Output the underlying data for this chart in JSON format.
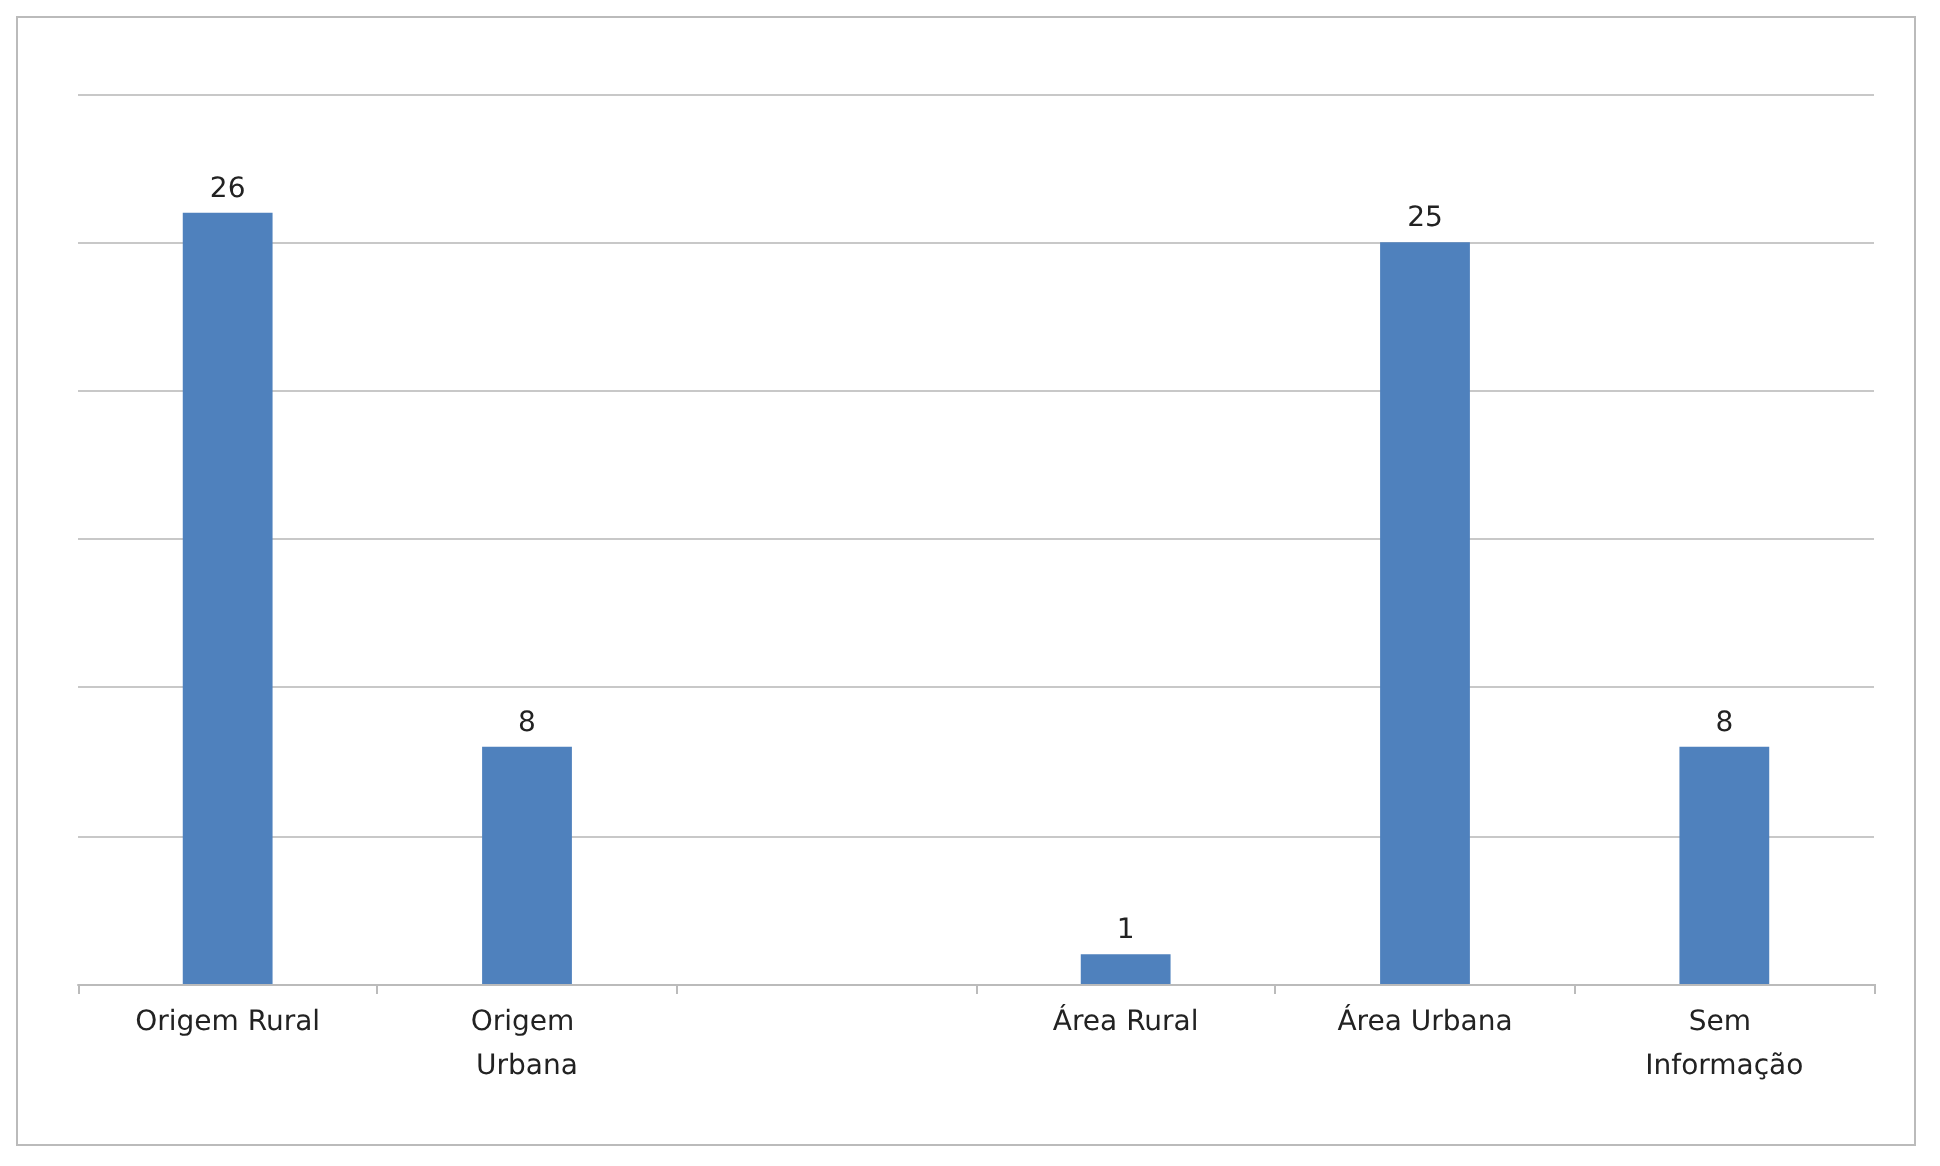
{
  "chart_data": {
    "type": "bar",
    "categories": [
      "Origem Rural",
      "Origem Urbana",
      null,
      "Área Rural",
      "Área Urbana",
      "Sem Informação"
    ],
    "values": [
      26,
      8,
      null,
      1,
      25,
      8
    ],
    "color": "#4f81bd",
    "data_labels": true,
    "grid": "y",
    "tick_labels": "x",
    "ylim": [
      0,
      30
    ],
    "yticks": [
      {
        "value": 0,
        "label": null
      },
      {
        "value": 5,
        "label": null
      },
      {
        "value": 10,
        "label": null
      },
      {
        "value": 15,
        "label": null
      },
      {
        "value": 20,
        "label": null
      },
      {
        "value": 25,
        "label": null
      },
      {
        "value": 30,
        "label": null
      }
    ]
  }
}
